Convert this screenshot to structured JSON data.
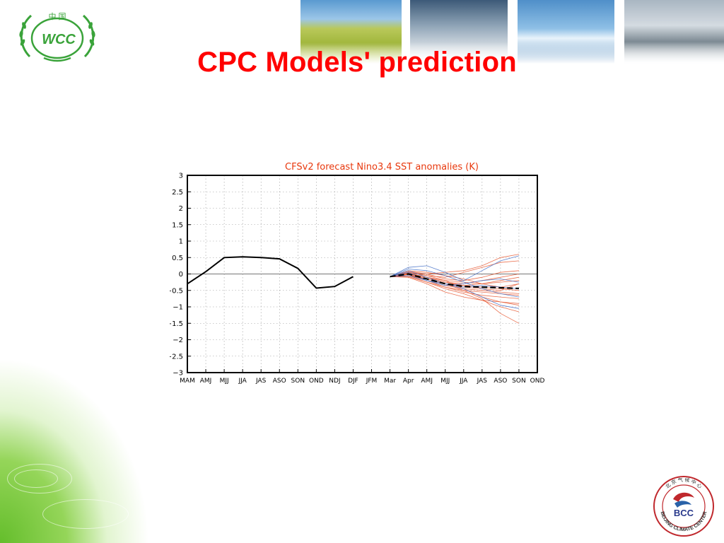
{
  "slide": {
    "title": "CPC Models' prediction",
    "title_color": "#ff0000"
  },
  "logos": {
    "left": {
      "name": "wcc-logo",
      "text": "WCC",
      "top_text": "中 国",
      "color": "#3aa33a"
    },
    "right": {
      "name": "bcc-logo",
      "text": "BCC",
      "ring_text": "BEIJING CLIMATE CENTER",
      "top_text": "北 京 气 候 中 心",
      "color": "#c0282d"
    }
  },
  "chart_data": {
    "type": "line",
    "title": "CFSv2 forecast Nino3.4 SST anomalies (K)",
    "title_color": "#e8380d",
    "categories": [
      "MAM",
      "AMJ",
      "MJJ",
      "JJA",
      "JAS",
      "ASO",
      "SON",
      "OND",
      "NDJ",
      "DJF",
      "JFM",
      "Mar",
      "Apr",
      "AMJ",
      "MJJ",
      "JJA",
      "JAS",
      "ASO",
      "SON",
      "OND"
    ],
    "ylim": [
      -3,
      3
    ],
    "yticks": [
      3,
      2.5,
      2,
      1.5,
      1,
      0.5,
      0,
      -0.5,
      -1,
      -1.5,
      -2,
      -2.5,
      -3
    ],
    "ytick_labels": [
      "3",
      "2.5",
      "2",
      "1.5",
      "1",
      "0.5",
      "0",
      "−0.5",
      "−1",
      "−1.5",
      "−2",
      "−2.5",
      "−3"
    ],
    "grid": true,
    "observed": {
      "style": "solid-black",
      "values": [
        -0.3,
        0.07,
        0.5,
        0.52,
        0.5,
        0.46,
        0.17,
        -0.43,
        -0.38,
        -0.08
      ]
    },
    "ensemble_mean": {
      "style": "dashed-black",
      "start_index": 11,
      "values": [
        -0.08,
        0.0,
        -0.15,
        -0.3,
        -0.38,
        -0.4,
        -0.42,
        -0.44
      ]
    },
    "members_red": [
      [
        -0.08,
        0.05,
        -0.05,
        -0.1,
        0.05,
        0.2,
        0.35,
        0.4
      ],
      [
        -0.08,
        0.0,
        -0.1,
        -0.25,
        -0.35,
        -0.4,
        -0.45,
        -0.5
      ],
      [
        -0.08,
        -0.05,
        -0.25,
        -0.45,
        -0.6,
        -0.8,
        -1.0,
        -1.15
      ],
      [
        -0.08,
        0.02,
        -0.15,
        -0.3,
        -0.5,
        -0.75,
        -1.2,
        -1.5
      ],
      [
        -0.08,
        0.05,
        0.0,
        0.05,
        0.1,
        0.25,
        0.5,
        0.6
      ],
      [
        -0.08,
        -0.1,
        -0.3,
        -0.55,
        -0.7,
        -0.8,
        -0.85,
        -0.9
      ],
      [
        -0.08,
        0.0,
        -0.2,
        -0.35,
        -0.45,
        -0.5,
        -0.55,
        -0.6
      ],
      [
        -0.08,
        0.08,
        0.0,
        -0.15,
        -0.2,
        -0.1,
        0.05,
        0.1
      ],
      [
        -0.08,
        -0.02,
        -0.2,
        -0.4,
        -0.55,
        -0.65,
        -0.7,
        -0.75
      ],
      [
        -0.08,
        0.03,
        -0.1,
        -0.2,
        -0.25,
        -0.3,
        -0.2,
        -0.1
      ],
      [
        -0.08,
        0.1,
        0.05,
        -0.05,
        -0.15,
        -0.3,
        -0.4,
        -0.3
      ],
      [
        -0.08,
        -0.05,
        -0.15,
        -0.3,
        -0.4,
        -0.45,
        -0.5,
        -0.3
      ],
      [
        -0.08,
        0.0,
        -0.15,
        -0.3,
        -0.35,
        -0.3,
        -0.25,
        -0.2
      ],
      [
        -0.08,
        0.05,
        -0.05,
        -0.2,
        -0.45,
        -0.7,
        -0.85,
        -0.95
      ],
      [
        -0.08,
        -0.08,
        -0.25,
        -0.4,
        -0.5,
        -0.55,
        -0.6,
        -0.65
      ],
      [
        -0.08,
        0.02,
        -0.1,
        -0.25,
        -0.3,
        -0.2,
        -0.1,
        0.0
      ]
    ],
    "members_blue": [
      [
        -0.08,
        0.2,
        0.25,
        0.05,
        -0.2,
        0.1,
        0.4,
        0.55
      ],
      [
        -0.08,
        0.1,
        -0.1,
        -0.3,
        -0.45,
        -0.7,
        -0.95,
        -1.05
      ],
      [
        -0.08,
        0.05,
        -0.2,
        -0.35,
        -0.3,
        -0.2,
        -0.15,
        -0.25
      ],
      [
        -0.08,
        -0.05,
        -0.2,
        -0.3,
        -0.4,
        -0.35,
        -0.4,
        -0.45
      ],
      [
        -0.08,
        0.15,
        0.1,
        -0.05,
        -0.25,
        -0.45,
        -0.6,
        -0.7
      ]
    ],
    "colors": {
      "red_members": "#e8603c",
      "blue_members": "#4a74c9",
      "observed": "#000000",
      "mean": "#000000",
      "grid": "#9a9a9a"
    }
  }
}
